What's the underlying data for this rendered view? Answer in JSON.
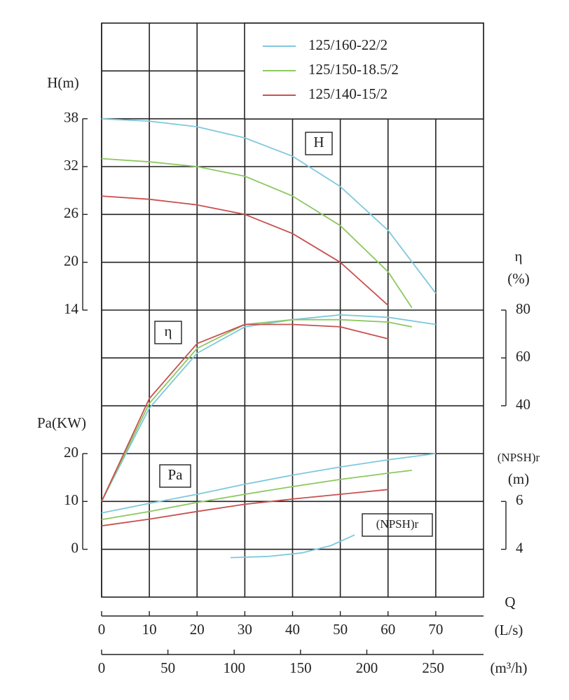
{
  "chart_data": {
    "type": "line",
    "x_axis": {
      "title": "Q",
      "unit": "(L/s)",
      "xlim": [
        0,
        80
      ],
      "xticks": [
        0,
        10,
        20,
        30,
        40,
        50,
        60,
        70
      ]
    },
    "x2_axis": {
      "unit": "(m³/h)",
      "xlim": [
        0,
        288
      ],
      "xticks": [
        0,
        50,
        100,
        150,
        200,
        250
      ]
    },
    "axes": {
      "H": {
        "title": "H(m)",
        "curve_label": "H",
        "ylim": [
          -22,
          50
        ],
        "yticks": [
          14,
          20,
          26,
          32,
          38
        ],
        "ygrid": [
          44,
          38,
          32,
          26,
          20,
          14,
          8,
          2,
          -4,
          -10,
          -16
        ]
      },
      "eta": {
        "title": "η",
        "unit": "(%)",
        "curve_label": "η",
        "ylim": [
          -40,
          200
        ],
        "yticks": [
          40,
          60,
          80
        ]
      },
      "Pa": {
        "title": "Pa(KW)",
        "curve_label": "Pa",
        "ylim": [
          -10,
          110
        ],
        "yticks": [
          0,
          10,
          20
        ]
      },
      "NPSH": {
        "title": "(NPSH)r",
        "unit": "(m)",
        "curve_label": "(NPSH)r",
        "ylim": [
          2,
          26
        ],
        "yticks": [
          4,
          6
        ]
      }
    },
    "series": [
      {
        "name": "125/160-22/2",
        "color": "#7ec8dc",
        "curves": {
          "H": {
            "x": [
              0,
              10,
              20,
              30,
              40,
              50,
              60,
              70
            ],
            "values": [
              38,
              37.7,
              37,
              35.6,
              33.3,
              29.5,
              24,
              16.1
            ]
          },
          "eta": {
            "x": [
              0,
              10,
              20,
              30,
              40,
              50,
              60,
              70
            ],
            "values": [
              0,
              39,
              62,
              73,
              76,
              78,
              77,
              74
            ]
          },
          "Pa": {
            "x": [
              0,
              10,
              20,
              30,
              40,
              50,
              60,
              70
            ],
            "values": [
              7.6,
              9.6,
              11.5,
              13.6,
              15.5,
              17.2,
              18.7,
              20
            ]
          },
          "NPSH": {
            "x": [
              27,
              35,
              42,
              48,
              53
            ],
            "values": [
              3.65,
              3.7,
              3.85,
              4.15,
              4.6
            ]
          }
        }
      },
      {
        "name": "125/150-18.5/2",
        "color": "#8cc860",
        "curves": {
          "H": {
            "x": [
              0,
              10,
              20,
              30,
              40,
              50,
              60,
              65
            ],
            "values": [
              33,
              32.6,
              32,
              30.8,
              28.3,
              24.6,
              18.8,
              14.3
            ]
          },
          "eta": {
            "x": [
              0,
              10,
              20,
              30,
              40,
              50,
              60,
              65
            ],
            "values": [
              0,
              41,
              64,
              74,
              76,
              76,
              75,
              73
            ]
          },
          "Pa": {
            "x": [
              0,
              10,
              20,
              30,
              40,
              50,
              60,
              65
            ],
            "values": [
              6.2,
              7.9,
              9.8,
              11.5,
              13.1,
              14.6,
              15.9,
              16.5
            ]
          }
        }
      },
      {
        "name": "125/140-15/2",
        "color": "#c85050",
        "curves": {
          "H": {
            "x": [
              0,
              10,
              20,
              30,
              40,
              50,
              60
            ],
            "values": [
              28.3,
              27.9,
              27.2,
              26,
              23.6,
              20,
              14.6
            ]
          },
          "eta": {
            "x": [
              0,
              10,
              20,
              30,
              40,
              50,
              60
            ],
            "values": [
              0,
              43,
              66,
              74,
              74,
              73,
              68
            ]
          },
          "Pa": {
            "x": [
              0,
              10,
              20,
              30,
              40,
              50,
              60
            ],
            "values": [
              4.9,
              6.3,
              7.9,
              9.4,
              10.5,
              11.5,
              12.5
            ]
          }
        }
      }
    ]
  }
}
